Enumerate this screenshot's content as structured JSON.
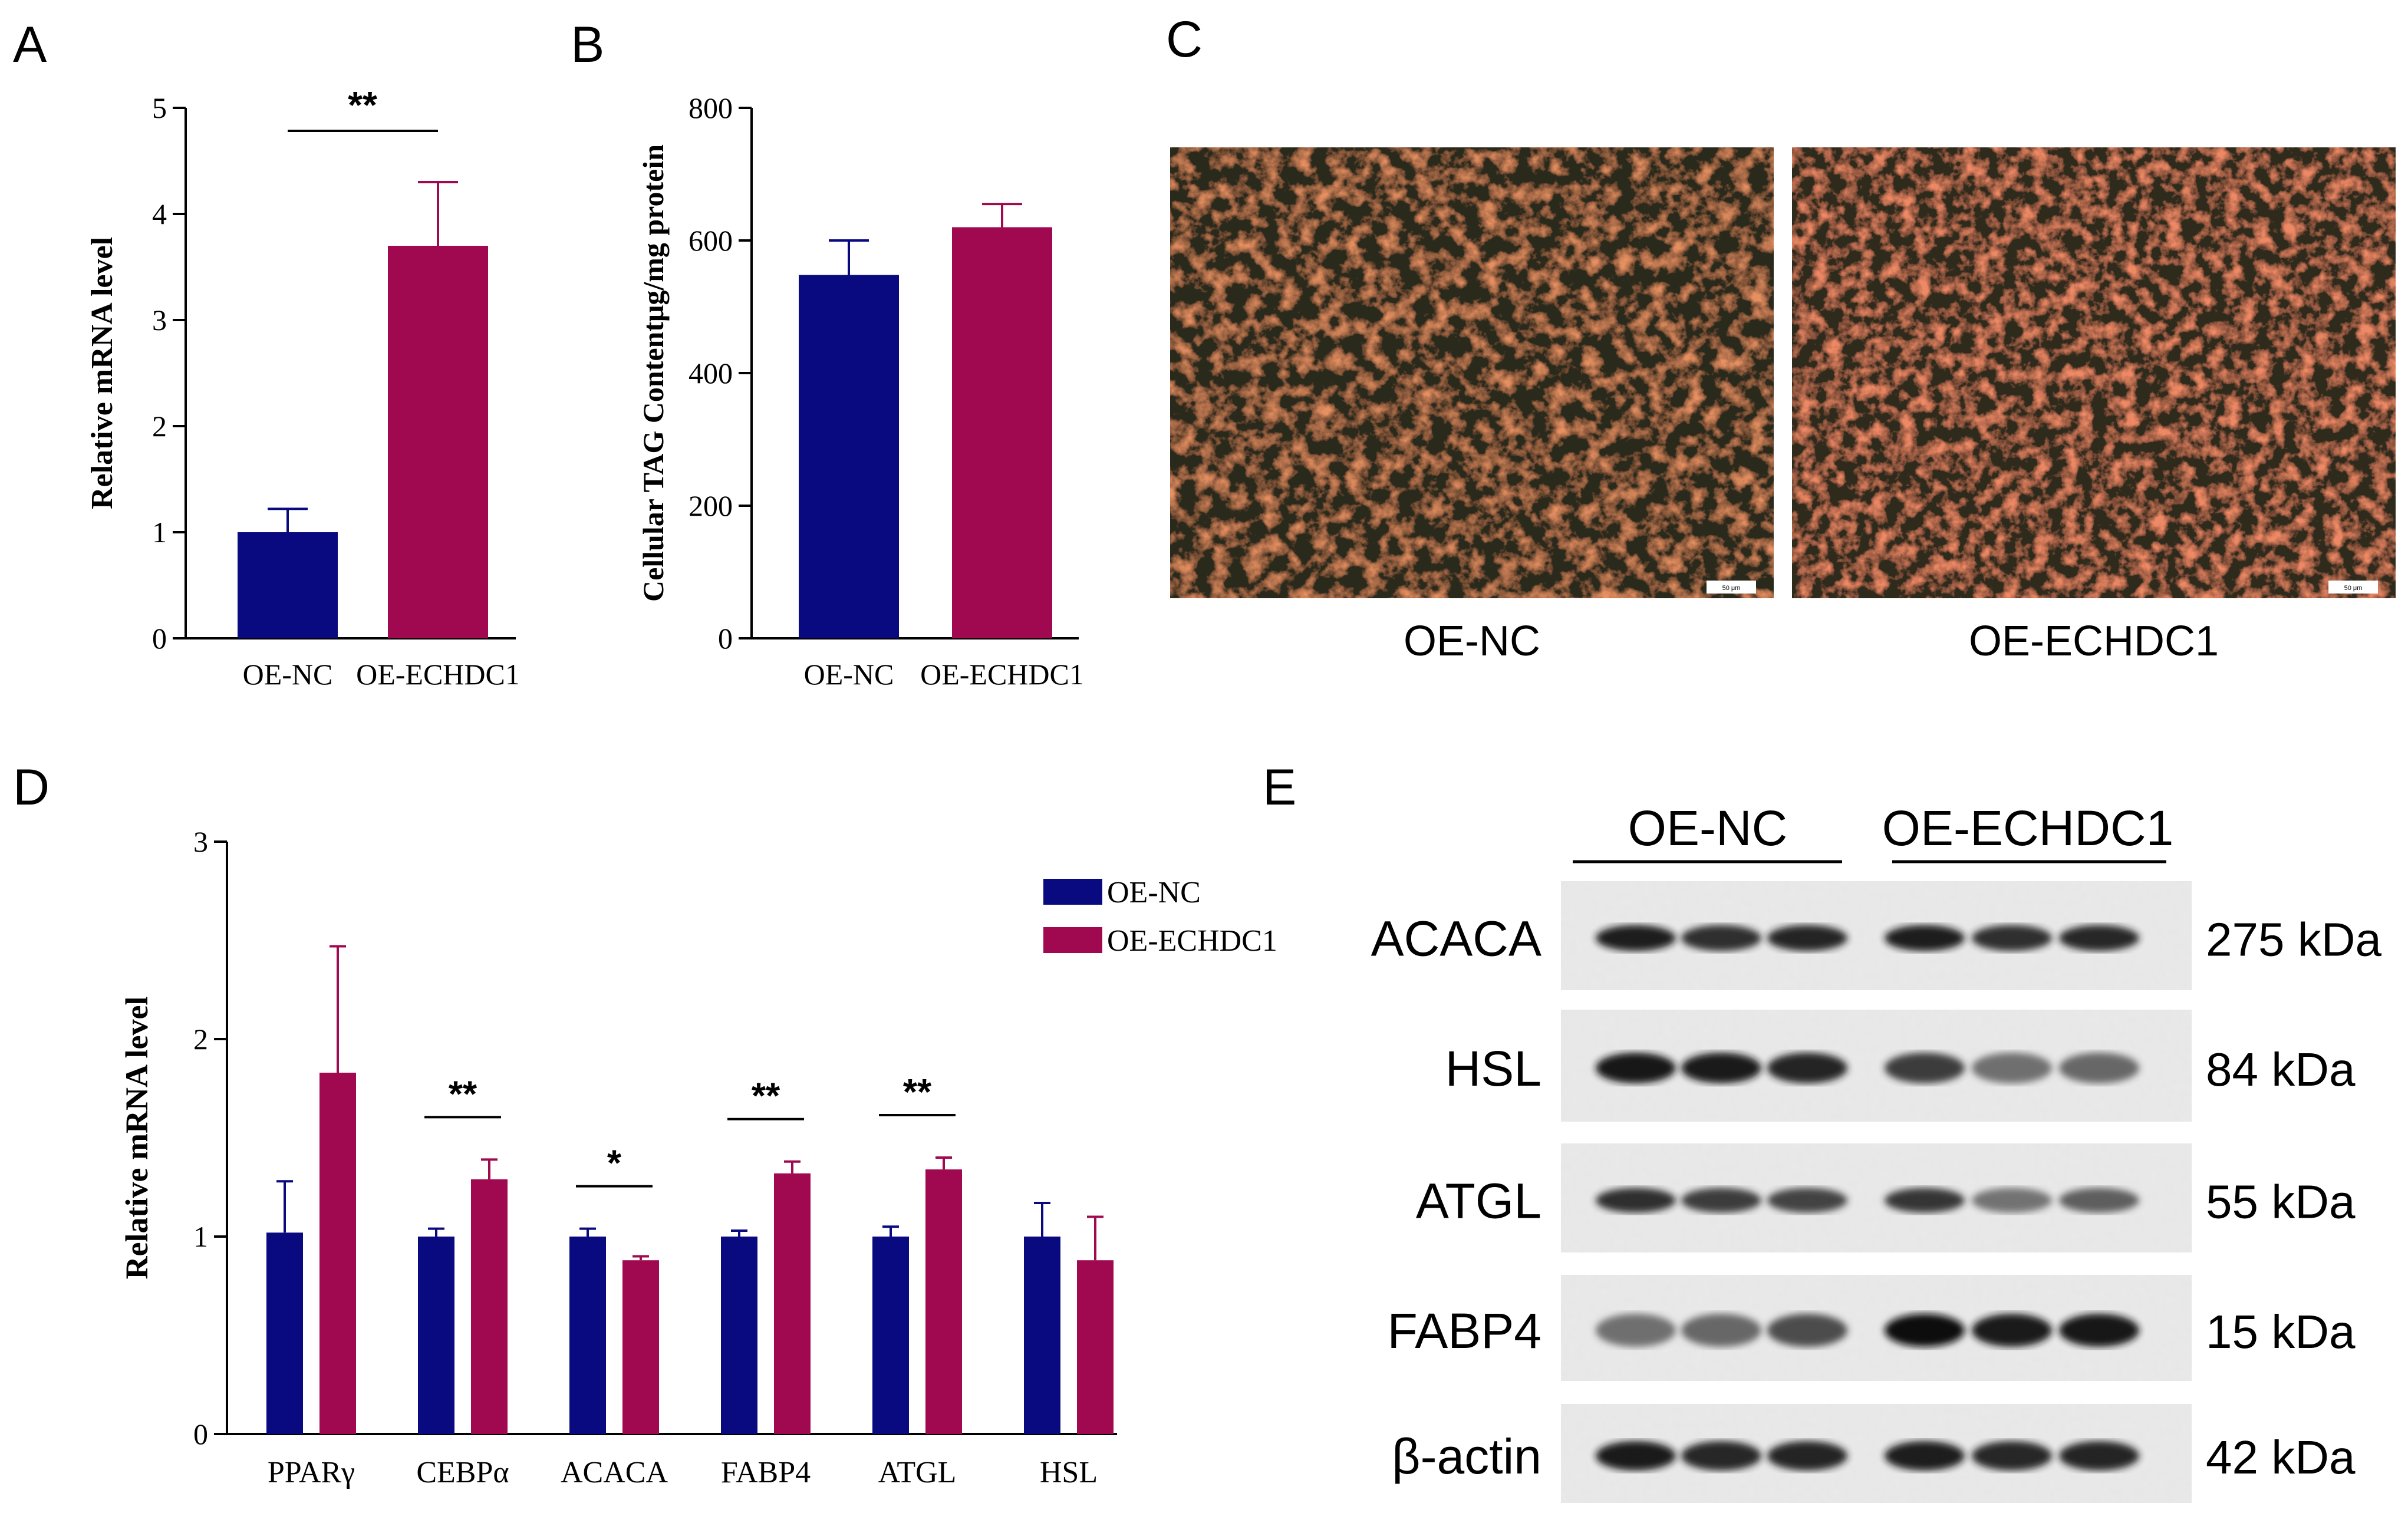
{
  "panels": {
    "A": {
      "letter": "A"
    },
    "B": {
      "letter": "B"
    },
    "C": {
      "letter": "C",
      "captions": [
        "OE-NC",
        "OE-ECHDC1"
      ],
      "scalebar": "50 μm"
    },
    "D": {
      "letter": "D"
    },
    "E": {
      "letter": "E",
      "groups": [
        "OE-NC",
        "OE-ECHDC1"
      ],
      "proteins": [
        "ACACA",
        "HSL",
        "ATGL",
        "FABP4",
        "β-actin"
      ],
      "sizes": [
        "275 kDa",
        "84 kDa",
        "55 kDa",
        "15 kDa",
        "42 kDa"
      ]
    }
  },
  "colors": {
    "OE-NC": "#0a0a80",
    "OE-ECHDC1": "#a0094f",
    "axis": "#000000"
  },
  "chart_data": [
    {
      "panel": "A",
      "type": "bar",
      "categories": [
        "OE-NC",
        "OE-ECHDC1"
      ],
      "values": [
        1.0,
        3.7
      ],
      "errors": [
        0.22,
        0.6
      ],
      "ylabel": "Relative mRNA level",
      "ylim": [
        0,
        5
      ],
      "yticks": [
        0,
        1,
        2,
        3,
        4,
        5
      ],
      "significance": [
        {
          "between": [
            0,
            1
          ],
          "label": "**"
        }
      ]
    },
    {
      "panel": "B",
      "type": "bar",
      "categories": [
        "OE-NC",
        "OE-ECHDC1"
      ],
      "values": [
        548,
        620
      ],
      "errors": [
        52,
        35
      ],
      "ylabel": "Cellular TAG Contentμg/mg protein",
      "ylim": [
        0,
        800
      ],
      "yticks": [
        0,
        200,
        400,
        600,
        800
      ]
    },
    {
      "panel": "D",
      "type": "bar",
      "categories": [
        "PPARγ",
        "CEBPα",
        "ACACA",
        "FABP4",
        "ATGL",
        "HSL"
      ],
      "series": [
        {
          "name": "OE-NC",
          "values": [
            1.02,
            1.0,
            1.0,
            1.0,
            1.0,
            1.0
          ],
          "errors": [
            0.26,
            0.04,
            0.04,
            0.03,
            0.05,
            0.17
          ]
        },
        {
          "name": "OE-ECHDC1",
          "values": [
            1.83,
            1.29,
            0.88,
            1.32,
            1.34,
            0.88
          ],
          "errors": [
            0.64,
            0.1,
            0.02,
            0.06,
            0.06,
            0.22
          ]
        }
      ],
      "ylabel": "Relative mRNA level",
      "ylim": [
        0,
        3
      ],
      "yticks": [
        0,
        1,
        2,
        3
      ],
      "legend": "top-right",
      "significance": [
        {
          "category": 1,
          "label": "**"
        },
        {
          "category": 2,
          "label": "*"
        },
        {
          "category": 3,
          "label": "**"
        },
        {
          "category": 4,
          "label": "**"
        }
      ]
    }
  ]
}
